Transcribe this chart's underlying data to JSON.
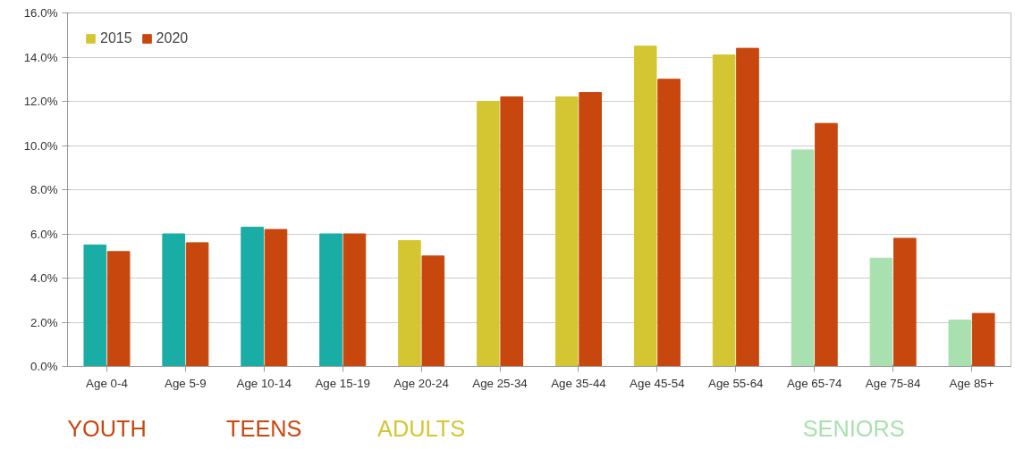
{
  "chart_data": {
    "type": "bar",
    "categories": [
      "Age 0-4",
      "Age 5-9",
      "Age 10-14",
      "Age 15-19",
      "Age 20-24",
      "Age 25-34",
      "Age 35-44",
      "Age 45-54",
      "Age 55-64",
      "Age 65-74",
      "Age 75-84",
      "Age 85+"
    ],
    "series": [
      {
        "name": "2015",
        "color": "#d4c632",
        "colors": [
          "#1aada5",
          "#1aada5",
          "#1aada5",
          "#1aada5",
          "#d4c632",
          "#d4c632",
          "#d4c632",
          "#d4c632",
          "#d4c632",
          "#a8e0b0",
          "#a8e0b0",
          "#a8e0b0"
        ],
        "values": [
          5.5,
          6.0,
          6.3,
          6.0,
          5.7,
          12.0,
          12.2,
          14.5,
          14.1,
          9.8,
          4.9,
          2.1
        ]
      },
      {
        "name": "2020",
        "color": "#c8470e",
        "values": [
          5.2,
          5.6,
          6.2,
          6.0,
          5.0,
          12.2,
          12.4,
          13.0,
          14.4,
          11.0,
          5.8,
          2.4
        ]
      }
    ],
    "ylim": [
      0,
      16
    ],
    "yticks": [
      {
        "value": 0,
        "label": "0.0%"
      },
      {
        "value": 2,
        "label": "2.0%"
      },
      {
        "value": 4,
        "label": "4.0%"
      },
      {
        "value": 6,
        "label": "6.0%"
      },
      {
        "value": 8,
        "label": "8.0%"
      },
      {
        "value": 10,
        "label": "10.0%"
      },
      {
        "value": 12,
        "label": "12.0%"
      },
      {
        "value": 14,
        "label": "14.0%"
      },
      {
        "value": 16,
        "label": "16.0%"
      }
    ],
    "grid": "y",
    "legend": "top left",
    "annotations": [
      "YOUTH",
      "TEENS",
      "ADULTS",
      "SENIORS"
    ]
  }
}
